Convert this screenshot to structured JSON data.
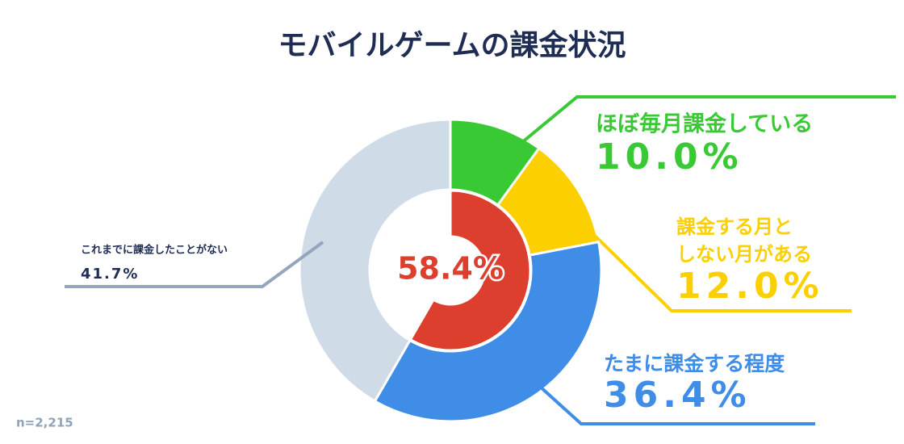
{
  "chart_data": {
    "type": "pie",
    "title": "モバイルゲームの課金状況",
    "categories": [
      "ほぼ毎月課金している",
      "課金する月と\nしない月がある",
      "たまに課金する程度",
      "これまでに課金したことがない"
    ],
    "values": [
      10.0,
      12.0,
      36.4,
      41.7
    ],
    "value_labels": [
      "10.0%",
      "12.0%",
      "36.4%",
      "41.7%"
    ],
    "colors": [
      "#38c934",
      "#fcd000",
      "#3f8de6",
      "#d0dbe8"
    ],
    "inner": {
      "value": 58.4,
      "label": "58.4%",
      "color": "#dc3f2e"
    },
    "note": "n=2,215"
  }
}
